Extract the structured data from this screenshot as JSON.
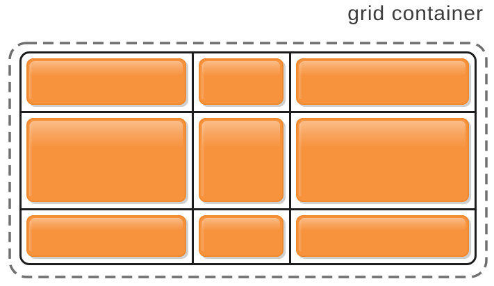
{
  "title": "grid container",
  "grid": {
    "rows": 3,
    "cols": 3,
    "items_count": 9
  },
  "colors": {
    "background": "#ffffff",
    "title_text": "#3c3c3c",
    "dashed_outline": "#6f6f6f",
    "grid_border": "#1d1d1d",
    "item_fill": "#f7923d",
    "item_border": "#ee8a31",
    "item_highlight": "#fbb269",
    "item_shadow": "#cfcfcf"
  }
}
